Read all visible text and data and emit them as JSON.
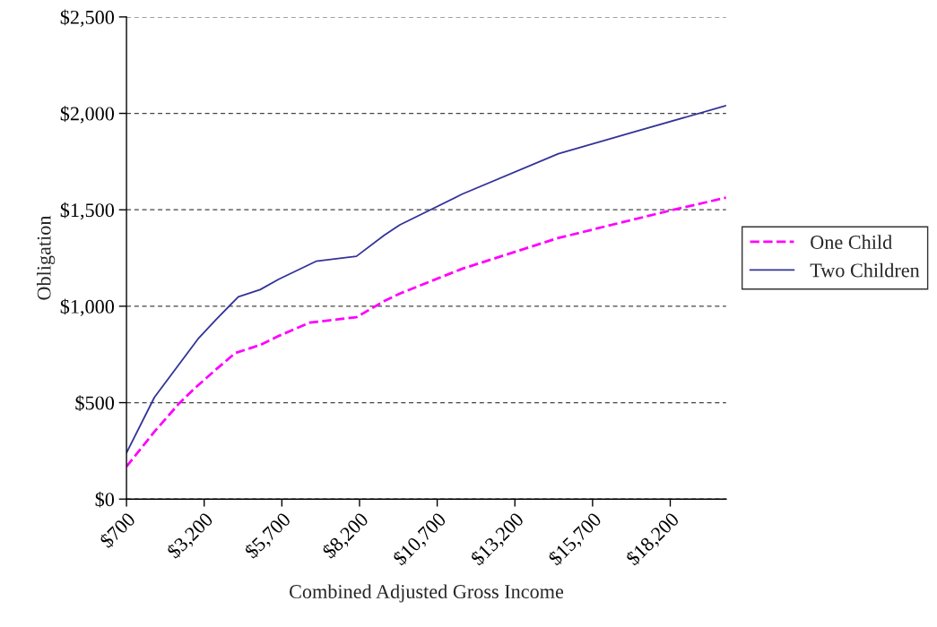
{
  "chart_data": {
    "type": "line",
    "xlabel": "Combined Adjusted Gross Income",
    "ylabel": "Obligation",
    "xlim": [
      700,
      20000
    ],
    "xticks": [
      {
        "value": 700,
        "label": "$700"
      },
      {
        "value": 3200,
        "label": "$3,200"
      },
      {
        "value": 5700,
        "label": "$5,700"
      },
      {
        "value": 8200,
        "label": "$8,200"
      },
      {
        "value": 10700,
        "label": "$10,700"
      },
      {
        "value": 13200,
        "label": "$13,200"
      },
      {
        "value": 15700,
        "label": "$15,700"
      },
      {
        "value": 18200,
        "label": "$18,200"
      }
    ],
    "ylim": [
      0,
      2500
    ],
    "yticks": [
      {
        "value": 0,
        "label": "$0"
      },
      {
        "value": 500,
        "label": "$500"
      },
      {
        "value": 1000,
        "label": "$1,000"
      },
      {
        "value": 1500,
        "label": "$1,500"
      },
      {
        "value": 2000,
        "label": "$2,000"
      },
      {
        "value": 2500,
        "label": "$2,500"
      }
    ],
    "grid": "y",
    "legend": "right",
    "marker": "none",
    "series": [
      {
        "name": "One Child",
        "color": "#ff00ff",
        "line_style": "dashed",
        "x": [
          700,
          1600,
          2400,
          2900,
          3600,
          4200,
          5000,
          5600,
          6600,
          8100,
          9000,
          9500,
          11500,
          14600,
          18400,
          20000
        ],
        "values": [
          169,
          350,
          497,
          575,
          675,
          757,
          799,
          846,
          915,
          943,
          1027,
          1066,
          1194,
          1354,
          1504,
          1563
        ]
      },
      {
        "name": "Two Children",
        "color": "#333399",
        "line_style": "solid",
        "x": [
          700,
          1600,
          3000,
          3600,
          4300,
          5000,
          5600,
          6800,
          8100,
          9000,
          9500,
          11500,
          14600,
          17100,
          20000
        ],
        "values": [
          240,
          528,
          830,
          934,
          1049,
          1086,
          1140,
          1233,
          1259,
          1369,
          1422,
          1581,
          1791,
          1907,
          2040
        ]
      }
    ]
  }
}
